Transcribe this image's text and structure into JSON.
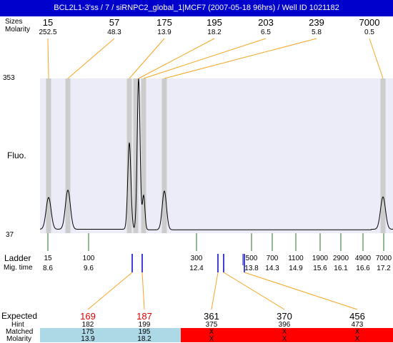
{
  "title": "BCL2L1-3'ss / 7 / siRNPC2_global_1|MCF7 (2007-05-18 96hrs) / Well ID 1021182",
  "labels": {
    "peaks_sizes": "Sizes",
    "peaks_molarity": "Molarity",
    "y_top": "353",
    "y_bottom": "37",
    "fluo": "Fluo.",
    "ladder": "Ladder",
    "mig_time": "Mig. time",
    "expected": "Expected",
    "hint": "Hint",
    "matched": "Matched",
    "molarity": "Molarity"
  },
  "colors": {
    "title_bg": "#0000cc",
    "plot_bg": "#ececf8",
    "peak_band": "#cccccc",
    "connector_orange": "#f5a623",
    "ladder_tick": "#227722",
    "marker_blue": "#0000cc",
    "expected_red": "#dd0000",
    "matched_ok": "#add8e6",
    "matched_fail": "#ff0000"
  },
  "chart_data": {
    "type": "line",
    "title": "BCL2L1-3'ss / 7 / siRNPC2_global_1|MCF7 (2007-05-18 96hrs) / Well ID 1021182",
    "ylabel": "Fluo.",
    "ylim": [
      37,
      353
    ],
    "peaks": [
      {
        "size": "15",
        "molarity": "252.5",
        "height": 110
      },
      {
        "size": "57",
        "molarity": "48.3",
        "height": 125
      },
      {
        "size": "175",
        "molarity": "13.9",
        "height": 222
      },
      {
        "size": "195",
        "molarity": "18.2",
        "height": 353
      },
      {
        "size": "203",
        "molarity": "6.5",
        "height": 115
      },
      {
        "size": "239",
        "molarity": "5.8",
        "height": 124
      },
      {
        "size": "7000",
        "molarity": "0.5",
        "height": 111
      }
    ],
    "ladder": [
      {
        "size": "15",
        "mig_time": "8.6"
      },
      {
        "size": "100",
        "mig_time": "9.6"
      },
      {
        "size": "300",
        "mig_time": "12.4"
      },
      {
        "size": "500",
        "mig_time": "13.8"
      },
      {
        "size": "700",
        "mig_time": "14.3"
      },
      {
        "size": "1100",
        "mig_time": "14.9"
      },
      {
        "size": "1900",
        "mig_time": "15.6"
      },
      {
        "size": "2900",
        "mig_time": "16.1"
      },
      {
        "size": "4900",
        "mig_time": "16.6"
      },
      {
        "size": "7000",
        "mig_time": "17.2"
      }
    ],
    "expected": [
      {
        "expected": "169",
        "hint": "182",
        "matched": "175",
        "molarity": "13.9",
        "status": "matched"
      },
      {
        "expected": "187",
        "hint": "199",
        "matched": "195",
        "molarity": "18.2",
        "status": "matched"
      },
      {
        "expected": "361",
        "hint": "375",
        "matched": "X",
        "molarity": "X",
        "status": "missing"
      },
      {
        "expected": "370",
        "hint": "396",
        "matched": "X",
        "molarity": "X",
        "status": "missing"
      },
      {
        "expected": "456",
        "hint": "473",
        "matched": "X",
        "molarity": "X",
        "status": "missing"
      }
    ]
  }
}
